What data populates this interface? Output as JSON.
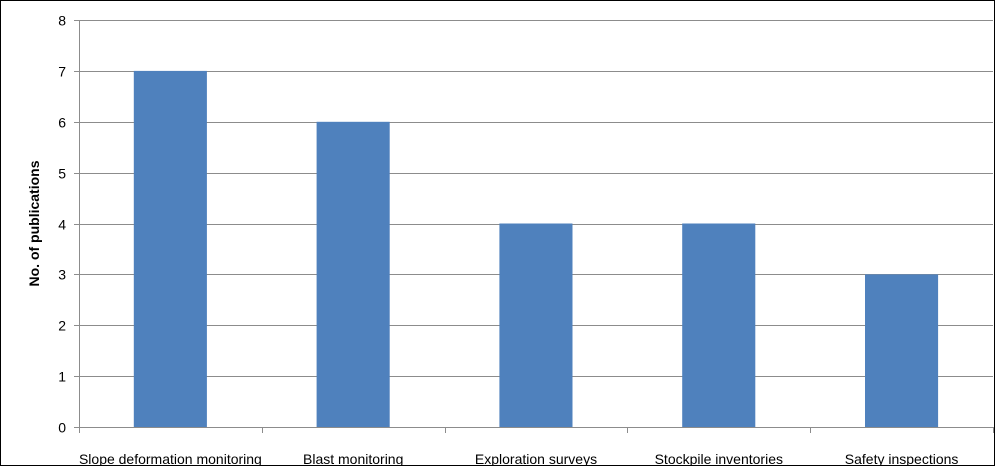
{
  "chart_data": {
    "type": "bar",
    "title": "",
    "xlabel": "",
    "ylabel": "No. of publications",
    "categories": [
      "Slope deformation monitoring",
      "Blast monitoring",
      "Exploration surveys",
      "Stockpile inventories",
      "Safety inspections"
    ],
    "values": [
      7,
      6,
      4,
      4,
      3
    ],
    "ylim": [
      0,
      8
    ],
    "yticks": [
      "0",
      "1",
      "2",
      "3",
      "4",
      "5",
      "6",
      "7",
      "8"
    ],
    "grid": true,
    "legend": "none",
    "colors": {
      "bar": "#4f81bd",
      "grid": "#8c8c8c",
      "axis": "#8c8c8c"
    }
  }
}
